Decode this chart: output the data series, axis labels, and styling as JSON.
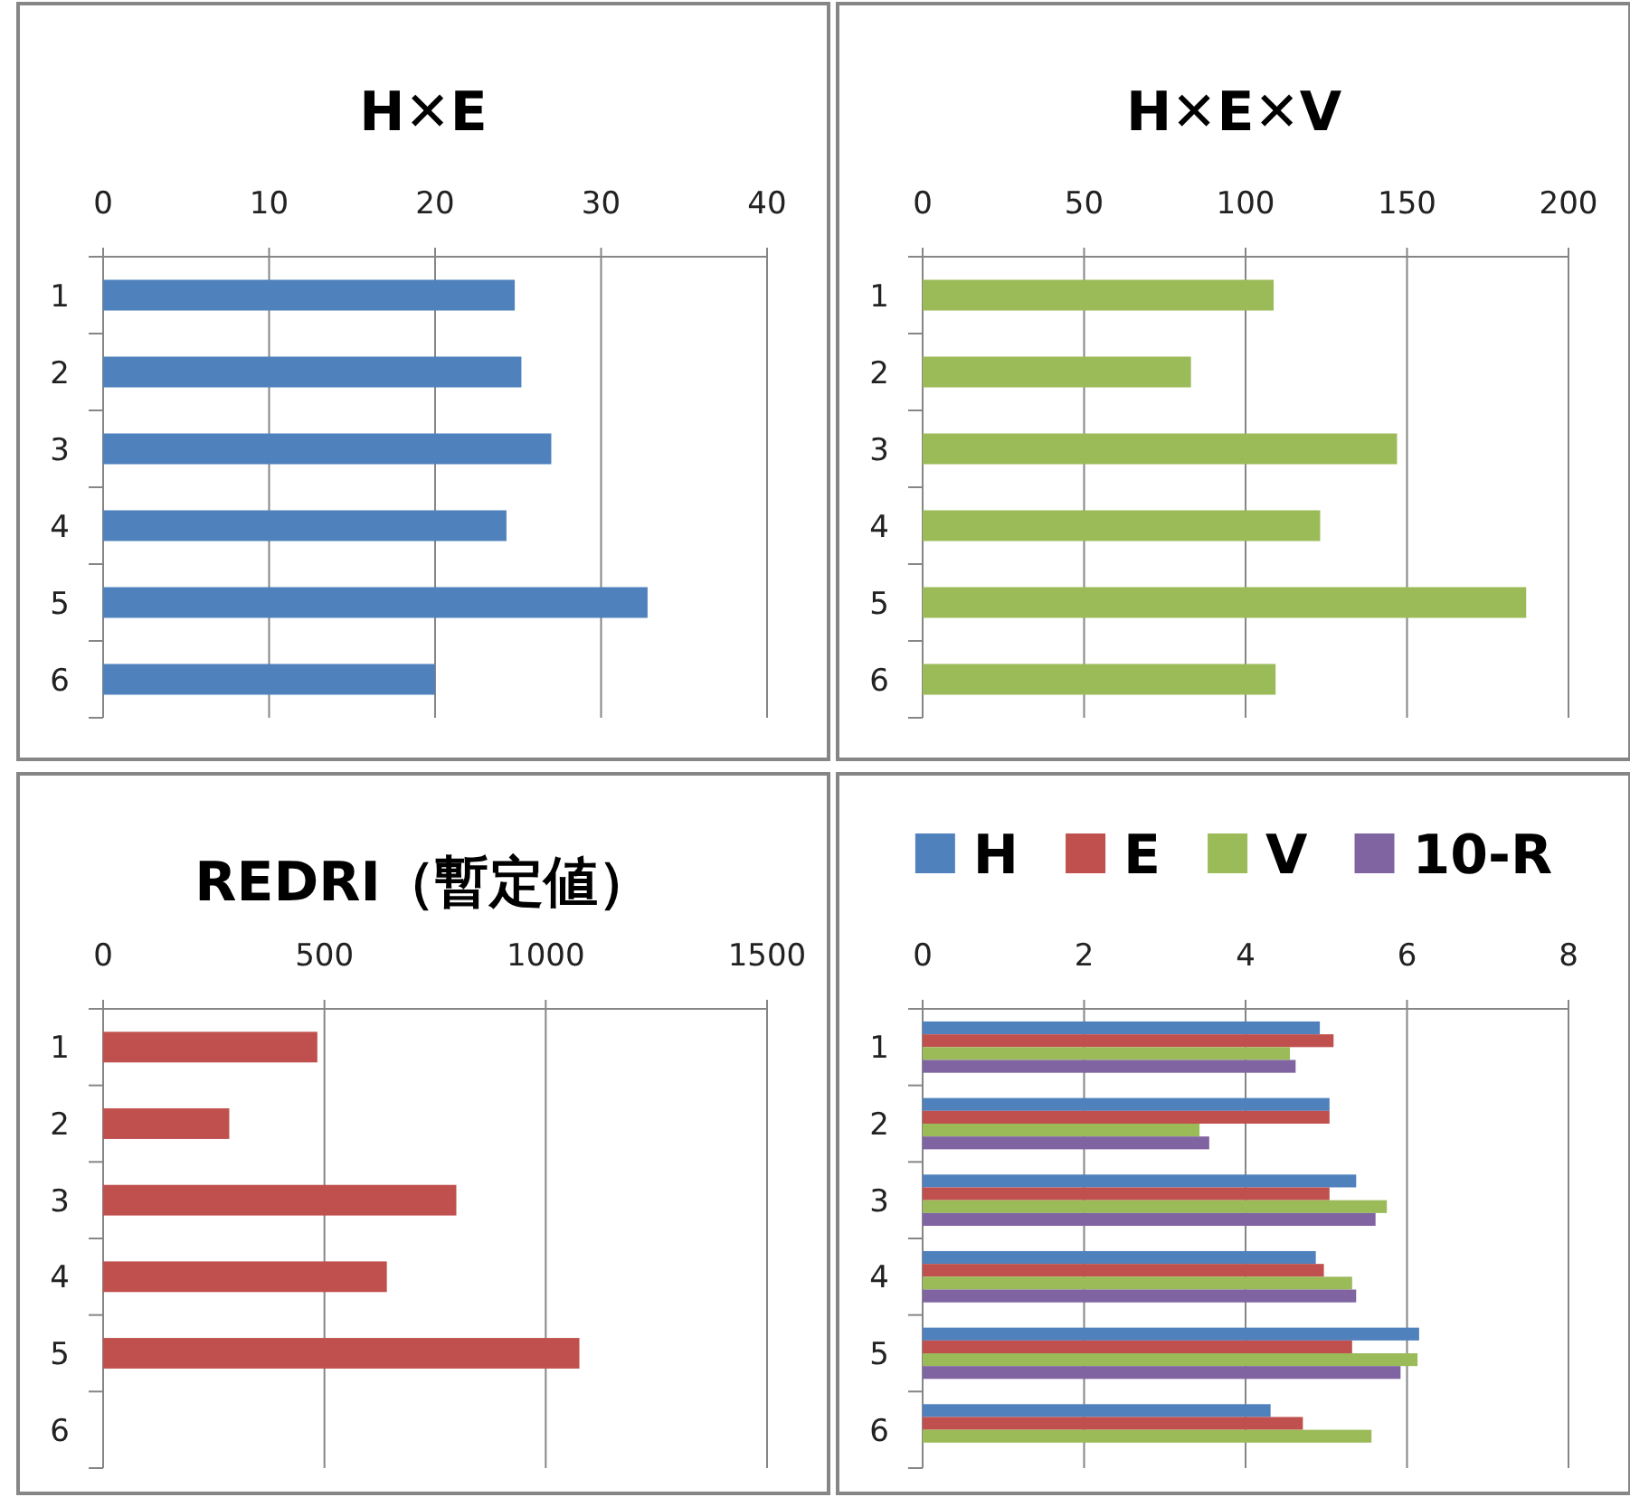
{
  "chart_data": [
    {
      "type": "bar",
      "orientation": "horizontal",
      "title": "H✕E",
      "categories": [
        "1",
        "2",
        "3",
        "4",
        "5",
        "6"
      ],
      "series": [
        {
          "color": "#4f81bd",
          "values": [
            24.8,
            25.2,
            27.0,
            24.3,
            32.8,
            20.0
          ]
        }
      ],
      "xlim": [
        0,
        40
      ],
      "xticks": [
        0,
        10,
        20,
        30,
        40
      ],
      "grid": "x",
      "legend": false
    },
    {
      "type": "bar",
      "orientation": "horizontal",
      "title": "H✕E✕V",
      "categories": [
        "1",
        "2",
        "3",
        "4",
        "5",
        "6"
      ],
      "series": [
        {
          "color": "#9bbb59",
          "values": [
            108.7,
            83.1,
            146.9,
            123.1,
            186.9,
            109.3
          ]
        }
      ],
      "xlim": [
        0,
        200
      ],
      "xticks": [
        0,
        50,
        100,
        150,
        200
      ],
      "grid": "x",
      "legend": false
    },
    {
      "type": "bar",
      "orientation": "horizontal",
      "title": "REDRI（暫定値）",
      "categories": [
        "1",
        "2",
        "3",
        "4",
        "5",
        "6"
      ],
      "series": [
        {
          "color": "#c0504d",
          "values": [
            484,
            285,
            798,
            641,
            1076,
            null
          ]
        }
      ],
      "xlim": [
        0,
        1500
      ],
      "xticks": [
        0,
        500,
        1000,
        1500
      ],
      "grid": "x",
      "legend": false
    },
    {
      "type": "bar",
      "orientation": "horizontal",
      "categories": [
        "1",
        "2",
        "3",
        "4",
        "5",
        "6"
      ],
      "series": [
        {
          "name": "H",
          "color": "#4f81bd",
          "values": [
            4.92,
            5.04,
            5.37,
            4.87,
            6.15,
            4.31
          ]
        },
        {
          "name": "E",
          "color": "#c0504d",
          "values": [
            5.09,
            5.04,
            5.04,
            4.97,
            5.32,
            4.71
          ]
        },
        {
          "name": "V",
          "color": "#9bbb59",
          "values": [
            4.55,
            3.43,
            5.75,
            5.32,
            6.13,
            5.56
          ]
        },
        {
          "name": "10-R",
          "color": "#8064a2",
          "values": [
            4.62,
            3.55,
            5.61,
            5.37,
            5.92,
            null
          ]
        }
      ],
      "xlim": [
        0,
        8
      ],
      "xticks": [
        0,
        2,
        4,
        6,
        8
      ],
      "grid": "x",
      "legend": "top"
    }
  ]
}
